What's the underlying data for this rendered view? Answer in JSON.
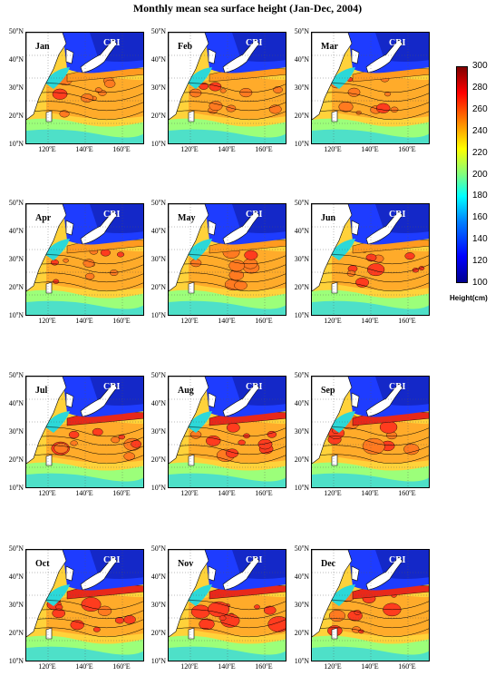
{
  "title": "Monthly mean sea surface height (Jan-Dec, 2004)",
  "region_label": "CRI",
  "months": [
    "Jan",
    "Feb",
    "Mar",
    "Apr",
    "May",
    "Jun",
    "Jul",
    "Aug",
    "Sep",
    "Oct",
    "Nov",
    "Dec"
  ],
  "lat_ticks": [
    "10",
    "20",
    "30",
    "40",
    "50"
  ],
  "lat_unit": "N",
  "lon_ticks": [
    "120",
    "140",
    "160"
  ],
  "lon_unit": "E",
  "degree_symbol": "o",
  "colorbar": {
    "label": "Height(cm)",
    "ticks": [
      "300",
      "280",
      "260",
      "240",
      "220",
      "200",
      "180",
      "160",
      "140",
      "120",
      "100"
    ],
    "range": [
      100,
      300
    ],
    "colors": [
      "#00008f",
      "#0000ff",
      "#0080ff",
      "#00ffff",
      "#80ff80",
      "#ffff00",
      "#ff8000",
      "#ff0000",
      "#800000"
    ]
  }
}
